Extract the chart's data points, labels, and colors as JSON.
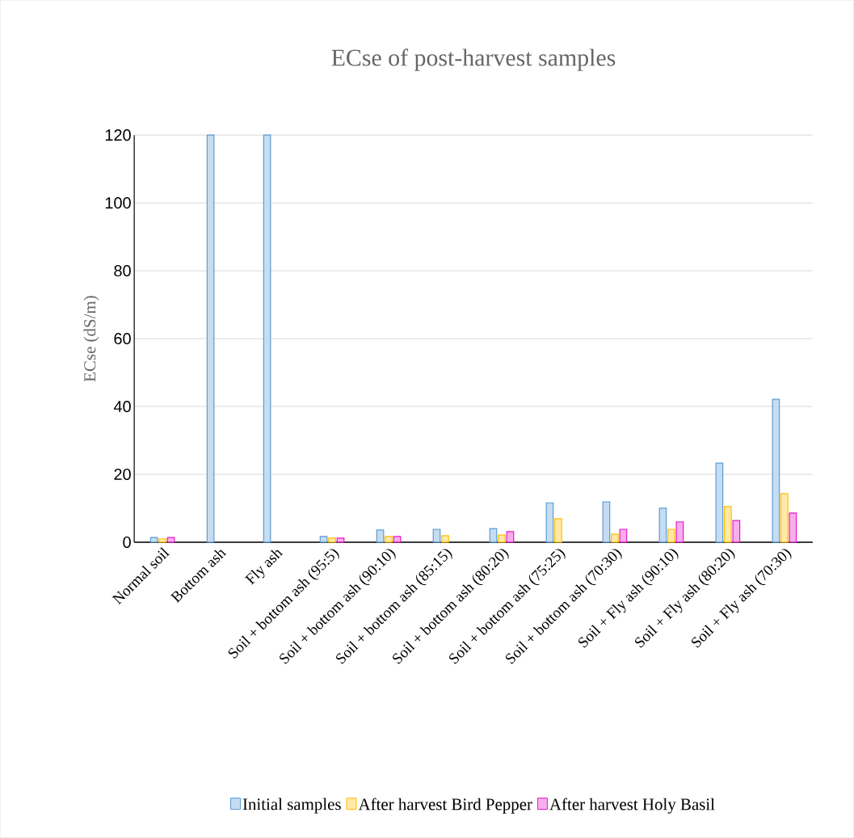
{
  "chart_data": {
    "type": "bar",
    "title": "ECse of post-harvest samples",
    "ylabel": "ECse (dS/m)",
    "categories": [
      "Normal soil",
      "Bottom ash",
      "Fly ash",
      "Soil + bottom ash (95:5)",
      "Soil + bottom ash (90:10)",
      "Soil + bottom ash (85:15)",
      "Soil + bottom ash (80:20)",
      "Soil + bottom ash (75:25)",
      "Soil + bottom ash (70:30)",
      "Soil + Fly ash (90:10)",
      "Soil + Fly ash (80:20)",
      "Soil + Fly ash (70:30)"
    ],
    "series": [
      {
        "name": "Initial samples",
        "color": "#5b9bd5",
        "values": [
          1.4,
          120,
          120,
          1.7,
          3.6,
          3.8,
          4.0,
          11.6,
          11.9,
          10.0,
          23.3,
          42.1
        ]
      },
      {
        "name": "After harvest Bird Pepper",
        "color": "#ffc000",
        "values": [
          1.0,
          null,
          null,
          1.2,
          1.7,
          1.9,
          2.1,
          6.9,
          2.4,
          3.8,
          10.5,
          14.3
        ]
      },
      {
        "name": "After harvest Holy Basil",
        "color": "#e619c8",
        "values": [
          1.4,
          null,
          null,
          1.2,
          1.7,
          null,
          3.1,
          null,
          3.8,
          6.0,
          6.4,
          8.6
        ]
      }
    ],
    "ylim": [
      0,
      120
    ],
    "yticks": [
      0,
      20,
      40,
      60,
      80,
      100,
      120
    ],
    "grid": "y",
    "legend": "bottom"
  }
}
